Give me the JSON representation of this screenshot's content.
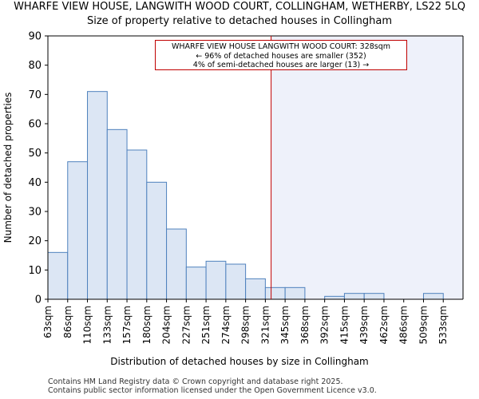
{
  "chart_data": {
    "type": "bar",
    "title": "WHARFE VIEW HOUSE, LANGWITH WOOD COURT, COLLINGHAM, WETHERBY, LS22 5LQ",
    "subtitle": "Size of property relative to detached houses in Collingham",
    "xlabel": "Distribution of detached houses by size in Collingham",
    "ylabel": "Number of detached properties",
    "categories": [
      "63sqm",
      "86sqm",
      "110sqm",
      "133sqm",
      "157sqm",
      "180sqm",
      "204sqm",
      "227sqm",
      "251sqm",
      "274sqm",
      "298sqm",
      "321sqm",
      "345sqm",
      "368sqm",
      "392sqm",
      "415sqm",
      "439sqm",
      "462sqm",
      "486sqm",
      "509sqm",
      "533sqm"
    ],
    "values": [
      16,
      47,
      71,
      58,
      51,
      40,
      24,
      11,
      13,
      12,
      7,
      4,
      4,
      0,
      1,
      2,
      2,
      0,
      0,
      2,
      0
    ],
    "y_ticks": [
      0,
      10,
      20,
      30,
      40,
      50,
      60,
      70,
      80,
      90
    ],
    "ylim": [
      0,
      90
    ],
    "marker_value": 328,
    "bar_color": "#dce6f4",
    "bar_edge_color": "#4f81bd",
    "marker_color": "#c00000",
    "highlight_color": "#eef1fa",
    "annotation": {
      "line1": "WHARFE VIEW HOUSE LANGWITH WOOD COURT: 328sqm",
      "line2": "← 96% of detached houses are smaller (352)",
      "line3": "4% of semi-detached houses are larger (13) →"
    }
  },
  "footer": {
    "line1": "Contains HM Land Registry data © Crown copyright and database right 2025.",
    "line2": "Contains public sector information licensed under the Open Government Licence v3.0."
  }
}
